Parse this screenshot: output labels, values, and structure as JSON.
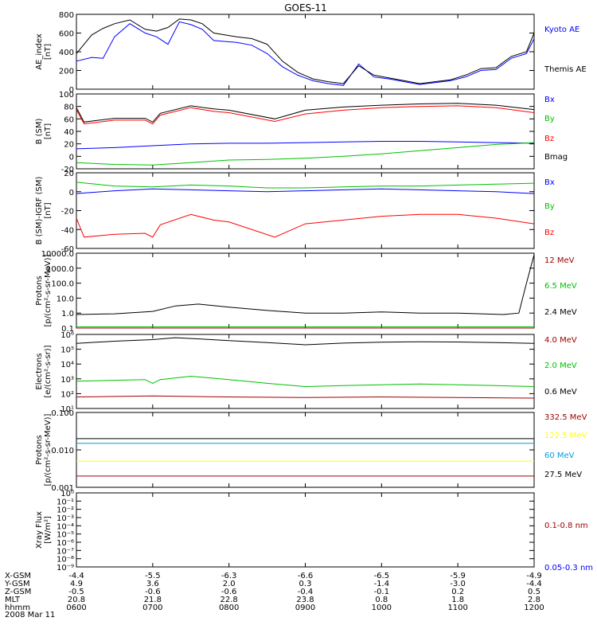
{
  "title": "GOES-11",
  "chart_data": [
    {
      "type": "line",
      "ylabel": "AE_index [nT]",
      "ylabel_lines": [
        "AE_index",
        "[nT]"
      ],
      "ylim": [
        0,
        800
      ],
      "yticks": [
        "800",
        "600",
        "400",
        "200",
        "0"
      ],
      "ytick_values": [
        800,
        600,
        400,
        200,
        0
      ],
      "legend": [
        {
          "name": "Kyoto AE",
          "color": "#0000ff"
        },
        {
          "name": "Themis AE",
          "color": "#000000"
        }
      ],
      "series": [
        {
          "name": "Kyoto AE",
          "color": "#0000ff",
          "x": [
            0,
            0.2,
            0.35,
            0.5,
            0.7,
            0.9,
            1.05,
            1.2,
            1.35,
            1.5,
            1.65,
            1.8,
            1.95,
            2.1,
            2.3,
            2.5,
            2.7,
            2.9,
            3.1,
            3.3,
            3.5,
            3.7,
            3.9,
            4.1,
            4.3,
            4.5,
            4.7,
            4.9,
            5.1,
            5.3,
            5.5,
            5.7,
            5.9,
            6.0
          ],
          "y": [
            300,
            340,
            330,
            560,
            700,
            600,
            560,
            480,
            720,
            690,
            640,
            520,
            510,
            500,
            470,
            380,
            240,
            150,
            90,
            60,
            40,
            270,
            130,
            110,
            80,
            50,
            70,
            90,
            130,
            200,
            210,
            330,
            380,
            540
          ]
        },
        {
          "name": "Themis AE",
          "color": "#000000",
          "x": [
            0,
            0.2,
            0.35,
            0.5,
            0.7,
            0.9,
            1.05,
            1.2,
            1.35,
            1.5,
            1.65,
            1.8,
            1.95,
            2.1,
            2.3,
            2.5,
            2.7,
            2.9,
            3.1,
            3.3,
            3.5,
            3.7,
            3.9,
            4.1,
            4.3,
            4.5,
            4.7,
            4.9,
            5.1,
            5.3,
            5.5,
            5.7,
            5.9,
            6.0
          ],
          "y": [
            380,
            580,
            650,
            700,
            740,
            640,
            620,
            660,
            750,
            740,
            700,
            600,
            580,
            560,
            540,
            480,
            300,
            180,
            110,
            80,
            60,
            250,
            150,
            120,
            90,
            60,
            80,
            100,
            150,
            220,
            230,
            350,
            400,
            600
          ]
        }
      ]
    },
    {
      "type": "line",
      "ylabel": "B (SM) [nT]",
      "ylabel_lines": [
        "B (SM)",
        "[nT]"
      ],
      "ylim": [
        -20,
        100
      ],
      "yticks": [
        "100",
        "80",
        "60",
        "40",
        "20",
        "0",
        "-20"
      ],
      "ytick_values": [
        100,
        80,
        60,
        40,
        20,
        0,
        -20
      ],
      "legend": [
        {
          "name": "Bx",
          "color": "#0000ff"
        },
        {
          "name": "By",
          "color": "#00c000"
        },
        {
          "name": "Bz",
          "color": "#ff0000"
        },
        {
          "name": "Bmag",
          "color": "#000000"
        }
      ],
      "series": [
        {
          "name": "Bx",
          "color": "#0000ff",
          "x": [
            0,
            0.5,
            1,
            1.5,
            2,
            2.5,
            3,
            3.5,
            4,
            4.5,
            5,
            5.5,
            6
          ],
          "y": [
            12,
            14,
            17,
            20,
            21,
            21,
            22,
            23,
            24,
            24,
            23,
            22,
            21
          ]
        },
        {
          "name": "By",
          "color": "#00c000",
          "x": [
            0,
            0.5,
            1,
            1.5,
            2,
            2.5,
            3,
            3.5,
            4,
            4.5,
            5,
            5.5,
            6
          ],
          "y": [
            -10,
            -13,
            -14,
            -10,
            -6,
            -5,
            -3,
            0,
            4,
            9,
            14,
            19,
            22
          ]
        },
        {
          "name": "Bz",
          "color": "#ff0000",
          "x": [
            0,
            0.1,
            0.5,
            0.9,
            1,
            1.1,
            1.5,
            1.8,
            2,
            2.6,
            3,
            3.5,
            4,
            4.5,
            5,
            5.5,
            6
          ],
          "y": [
            75,
            52,
            58,
            58,
            52,
            66,
            78,
            72,
            70,
            56,
            68,
            74,
            78,
            80,
            81,
            78,
            70
          ]
        },
        {
          "name": "Bmag",
          "color": "#000000",
          "x": [
            0,
            0.1,
            0.5,
            0.9,
            1,
            1.1,
            1.5,
            1.8,
            2,
            2.6,
            3,
            3.5,
            4,
            4.5,
            5,
            5.5,
            6
          ],
          "y": [
            78,
            55,
            61,
            61,
            55,
            69,
            81,
            76,
            74,
            60,
            74,
            79,
            82,
            84,
            85,
            82,
            75
          ]
        }
      ]
    },
    {
      "type": "line",
      "ylabel": "B (SM)-IGRF (SM) [nT]",
      "ylabel_lines": [
        "B (SM)-IGRF (SM)",
        "[nT]"
      ],
      "ylim": [
        -60,
        20
      ],
      "yticks": [
        "20",
        "0",
        "-20",
        "-40",
        "-60"
      ],
      "ytick_values": [
        20,
        0,
        -20,
        -40,
        -60
      ],
      "legend": [
        {
          "name": "Bx",
          "color": "#0000ff"
        },
        {
          "name": "By",
          "color": "#00c000"
        },
        {
          "name": "Bz",
          "color": "#ff0000"
        }
      ],
      "series": [
        {
          "name": "Bx",
          "color": "#0000ff",
          "x": [
            0,
            0.5,
            1,
            1.5,
            2,
            2.5,
            3,
            3.5,
            4,
            4.5,
            5,
            5.5,
            6
          ],
          "y": [
            -2,
            1,
            3,
            2,
            1,
            0,
            1,
            2,
            3,
            2,
            1,
            0,
            -2
          ]
        },
        {
          "name": "By",
          "color": "#00c000",
          "x": [
            0,
            0.5,
            1,
            1.5,
            2,
            2.5,
            3,
            3.5,
            4,
            4.5,
            5,
            5.5,
            6
          ],
          "y": [
            10,
            6,
            5,
            7,
            6,
            4,
            4,
            5,
            6,
            6,
            7,
            8,
            9
          ]
        },
        {
          "name": "Bz",
          "color": "#ff0000",
          "x": [
            0,
            0.1,
            0.5,
            0.9,
            1,
            1.1,
            1.5,
            1.8,
            2,
            2.6,
            3,
            3.5,
            4,
            4.5,
            5,
            5.5,
            6
          ],
          "y": [
            -28,
            -48,
            -45,
            -44,
            -48,
            -35,
            -24,
            -30,
            -32,
            -48,
            -34,
            -30,
            -26,
            -24,
            -24,
            -28,
            -34
          ]
        }
      ]
    },
    {
      "type": "line",
      "ylabel": "Protons [p/(cm2-s-sr-MeV)]",
      "ylabel_lines": [
        "Protons",
        "[p/(cm²-s-sr-MeV)]"
      ],
      "yscale": "log",
      "ylim": [
        0.1,
        10000
      ],
      "yticks": [
        "10000.0",
        "1000.0",
        "100.0",
        "10.0",
        "1.0",
        "0.1"
      ],
      "ytick_values": [
        10000,
        1000,
        100,
        10,
        1,
        0.1
      ],
      "legend": [
        {
          "name": "12 MeV",
          "color": "#a00000"
        },
        {
          "name": "6.5 MeV",
          "color": "#00c000"
        },
        {
          "name": "2.4 MeV",
          "color": "#000000"
        }
      ],
      "series": [
        {
          "name": "2.4 MeV",
          "color": "#000000",
          "x": [
            0,
            0.5,
            1,
            1.3,
            1.6,
            2,
            2.5,
            3,
            3.5,
            4,
            4.5,
            5,
            5.6,
            5.8,
            5.9,
            6
          ],
          "y": [
            0.8,
            0.9,
            1.3,
            3,
            4,
            2.5,
            1.5,
            1,
            1,
            1.2,
            1,
            1,
            0.8,
            1,
            100,
            8000
          ]
        },
        {
          "name": "6.5 MeV",
          "color": "#00c000",
          "x": [
            0,
            1,
            2,
            3,
            4,
            5,
            6
          ],
          "y": [
            0.12,
            0.12,
            0.12,
            0.12,
            0.12,
            0.12,
            0.12
          ]
        },
        {
          "name": "12 MeV",
          "color": "#a00000",
          "x": [
            0,
            1,
            2,
            3,
            4,
            5,
            6
          ],
          "y": [
            0.1,
            0.1,
            0.1,
            0.1,
            0.1,
            0.1,
            0.1
          ]
        }
      ]
    },
    {
      "type": "line",
      "ylabel": "Electrons [e/(cm2-s-sr)]",
      "ylabel_lines": [
        "Electrons",
        "[e/(cm²-s-sr)]"
      ],
      "yscale": "log",
      "ylim": [
        10,
        1000000
      ],
      "yticks": [
        "10⁶",
        "10⁵",
        "10⁴",
        "10³",
        "10²",
        "10¹"
      ],
      "ytick_values": [
        1000000,
        100000,
        10000,
        1000,
        100,
        10
      ],
      "legend": [
        {
          "name": "4.0 MeV",
          "color": "#a00000"
        },
        {
          "name": "2.0 MeV",
          "color": "#00c000"
        },
        {
          "name": "0.6 MeV",
          "color": "#000000"
        }
      ],
      "series": [
        {
          "name": "0.6 MeV",
          "color": "#000000",
          "x": [
            0,
            0.5,
            1,
            1.3,
            1.6,
            2,
            2.5,
            3,
            3.5,
            4,
            4.5,
            5,
            5.5,
            6
          ],
          "y": [
            250000,
            350000,
            450000,
            600000,
            500000,
            380000,
            280000,
            200000,
            260000,
            300000,
            320000,
            310000,
            280000,
            250000
          ]
        },
        {
          "name": "2.0 MeV",
          "color": "#00c000",
          "x": [
            0,
            0.5,
            0.9,
            1,
            1.1,
            1.5,
            2,
            2.5,
            3,
            3.5,
            4,
            4.5,
            5,
            5.5,
            6
          ],
          "y": [
            700,
            800,
            900,
            500,
            900,
            1500,
            900,
            500,
            300,
            350,
            400,
            450,
            400,
            350,
            300
          ]
        },
        {
          "name": "4.0 MeV",
          "color": "#a00000",
          "x": [
            0,
            1,
            2,
            3,
            4,
            5,
            6
          ],
          "y": [
            60,
            70,
            60,
            55,
            60,
            55,
            50
          ]
        }
      ]
    },
    {
      "type": "line",
      "ylabel": "Protons [p/(cm2-s-sr-MeV)]",
      "ylabel_lines": [
        "Protons",
        "[p/(cm²-s-sr-MeV)]"
      ],
      "yscale": "log",
      "ylim": [
        0.001,
        0.1
      ],
      "yticks": [
        "0.100",
        "0.010",
        "0.001"
      ],
      "ytick_values": [
        0.1,
        0.01,
        0.001
      ],
      "legend": [
        {
          "name": "332.5 MeV",
          "color": "#a00000"
        },
        {
          "name": "122.5 MeV",
          "color": "#ffff00"
        },
        {
          "name": "60 MeV",
          "color": "#00a0e0"
        },
        {
          "name": "27.5 MeV",
          "color": "#000000"
        }
      ],
      "series": [
        {
          "name": "27.5 MeV",
          "color": "#000000",
          "x": [
            0,
            1,
            2,
            3,
            4,
            5,
            6
          ],
          "y": [
            0.02,
            0.02,
            0.02,
            0.02,
            0.02,
            0.02,
            0.02
          ]
        },
        {
          "name": "60 MeV",
          "color": "#00a0e0",
          "x": [
            0,
            1,
            2,
            3,
            4,
            5,
            6
          ],
          "y": [
            0.015,
            0.015,
            0.015,
            0.015,
            0.015,
            0.015,
            0.015
          ]
        },
        {
          "name": "122.5 MeV",
          "color": "#ffff00",
          "x": [
            0,
            1,
            2,
            3,
            4,
            5,
            6
          ],
          "y": [
            0.005,
            0.005,
            0.005,
            0.005,
            0.005,
            0.005,
            0.005
          ]
        },
        {
          "name": "332.5 MeV",
          "color": "#a00000",
          "x": [
            0,
            1,
            2,
            3,
            4,
            5,
            6
          ],
          "y": [
            0.002,
            0.002,
            0.002,
            0.002,
            0.002,
            0.002,
            0.002
          ]
        }
      ]
    },
    {
      "type": "line",
      "ylabel": "Xray Flux [W/m2]",
      "ylabel_lines": [
        "Xray Flux",
        "[W/m²]"
      ],
      "yscale": "log",
      "ylim": [
        1e-09,
        1
      ],
      "yticks": [
        "10⁰",
        "10⁻¹",
        "10⁻²",
        "10⁻³",
        "10⁻⁴",
        "10⁻⁵",
        "10⁻⁶",
        "10⁻⁷",
        "10⁻⁸",
        "10⁻⁹"
      ],
      "ytick_values": [
        1,
        0.1,
        0.01,
        0.001,
        0.0001,
        1e-05,
        1e-06,
        1e-07,
        1e-08,
        1e-09
      ],
      "legend": [
        {
          "name": "0.1-0.8 nm",
          "color": "#a00000"
        },
        {
          "name": "0.05-0.3 nm",
          "color": "#0000ff"
        }
      ],
      "series": []
    }
  ],
  "xaxis": {
    "range": [
      0,
      6
    ],
    "rows": [
      {
        "label": "X-GSM",
        "values": [
          "-4.4",
          "-5.5",
          "-6.3",
          "-6.6",
          "-6.5",
          "-5.9",
          "-4.9"
        ]
      },
      {
        "label": "Y-GSM",
        "values": [
          "4.9",
          "3.6",
          "2.0",
          "0.3",
          "-1.4",
          "-3.0",
          "-4.4"
        ]
      },
      {
        "label": "Z-GSM",
        "values": [
          "-0.5",
          "-0.6",
          "-0.6",
          "-0.4",
          "-0.1",
          "0.2",
          "0.5"
        ]
      },
      {
        "label": "MLT",
        "values": [
          "20.8",
          "21.8",
          "22.8",
          "23.8",
          "0.8",
          "1.8",
          "2.8"
        ]
      },
      {
        "label": "hhmm",
        "values": [
          "0600",
          "0700",
          "0800",
          "0900",
          "1000",
          "1100",
          "1200"
        ]
      }
    ],
    "date": "2008 Mar 11"
  }
}
